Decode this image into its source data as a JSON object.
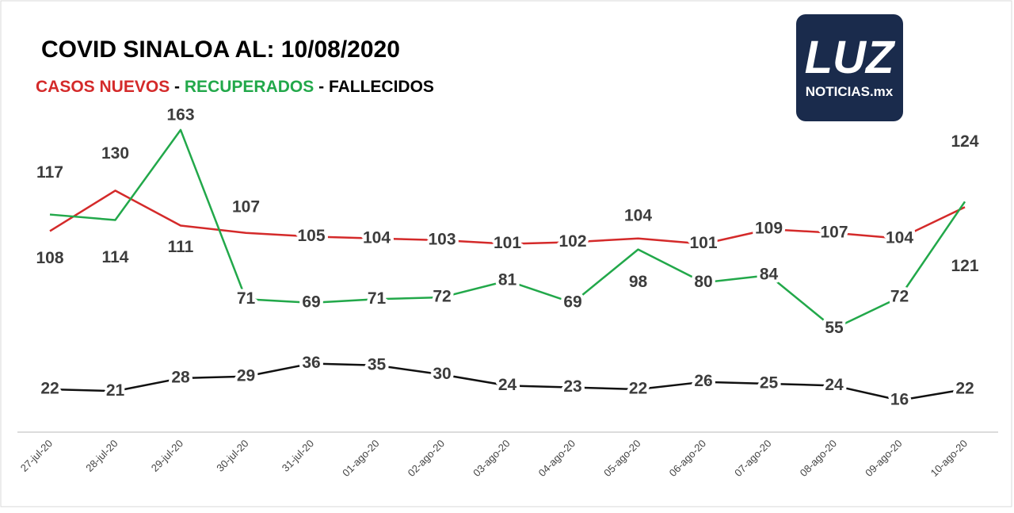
{
  "chart_data": {
    "type": "line",
    "title": "COVID SINALOA AL: 10/08/2020",
    "separator": "-",
    "logo": {
      "main": "LUZ",
      "sub": "NOTICIAS.mx"
    },
    "categories": [
      "27-jul-20",
      "28-jul-20",
      "29-jul-20",
      "30-jul-20",
      "31-jul-20",
      "01-ago-20",
      "02-ago-20",
      "03-ago-20",
      "04-ago-20",
      "05-ago-20",
      "06-ago-20",
      "07-ago-20",
      "08-ago-20",
      "09-ago-20",
      "10-ago-20"
    ],
    "series": [
      {
        "name": "CASOS NUEVOS",
        "color": "#d42a2a",
        "values": [
          108,
          130,
          111,
          107,
          105,
          104,
          103,
          101,
          102,
          104,
          101,
          109,
          107,
          104,
          121
        ]
      },
      {
        "name": "RECUPERADOS",
        "color": "#22a84a",
        "values": [
          117,
          114,
          163,
          71,
          69,
          71,
          72,
          81,
          69,
          98,
          80,
          84,
          55,
          72,
          124
        ]
      },
      {
        "name": "FALLECIDOS",
        "color": "#111111",
        "values": [
          22,
          21,
          28,
          29,
          36,
          35,
          30,
          24,
          23,
          22,
          26,
          25,
          24,
          16,
          22
        ]
      }
    ]
  }
}
